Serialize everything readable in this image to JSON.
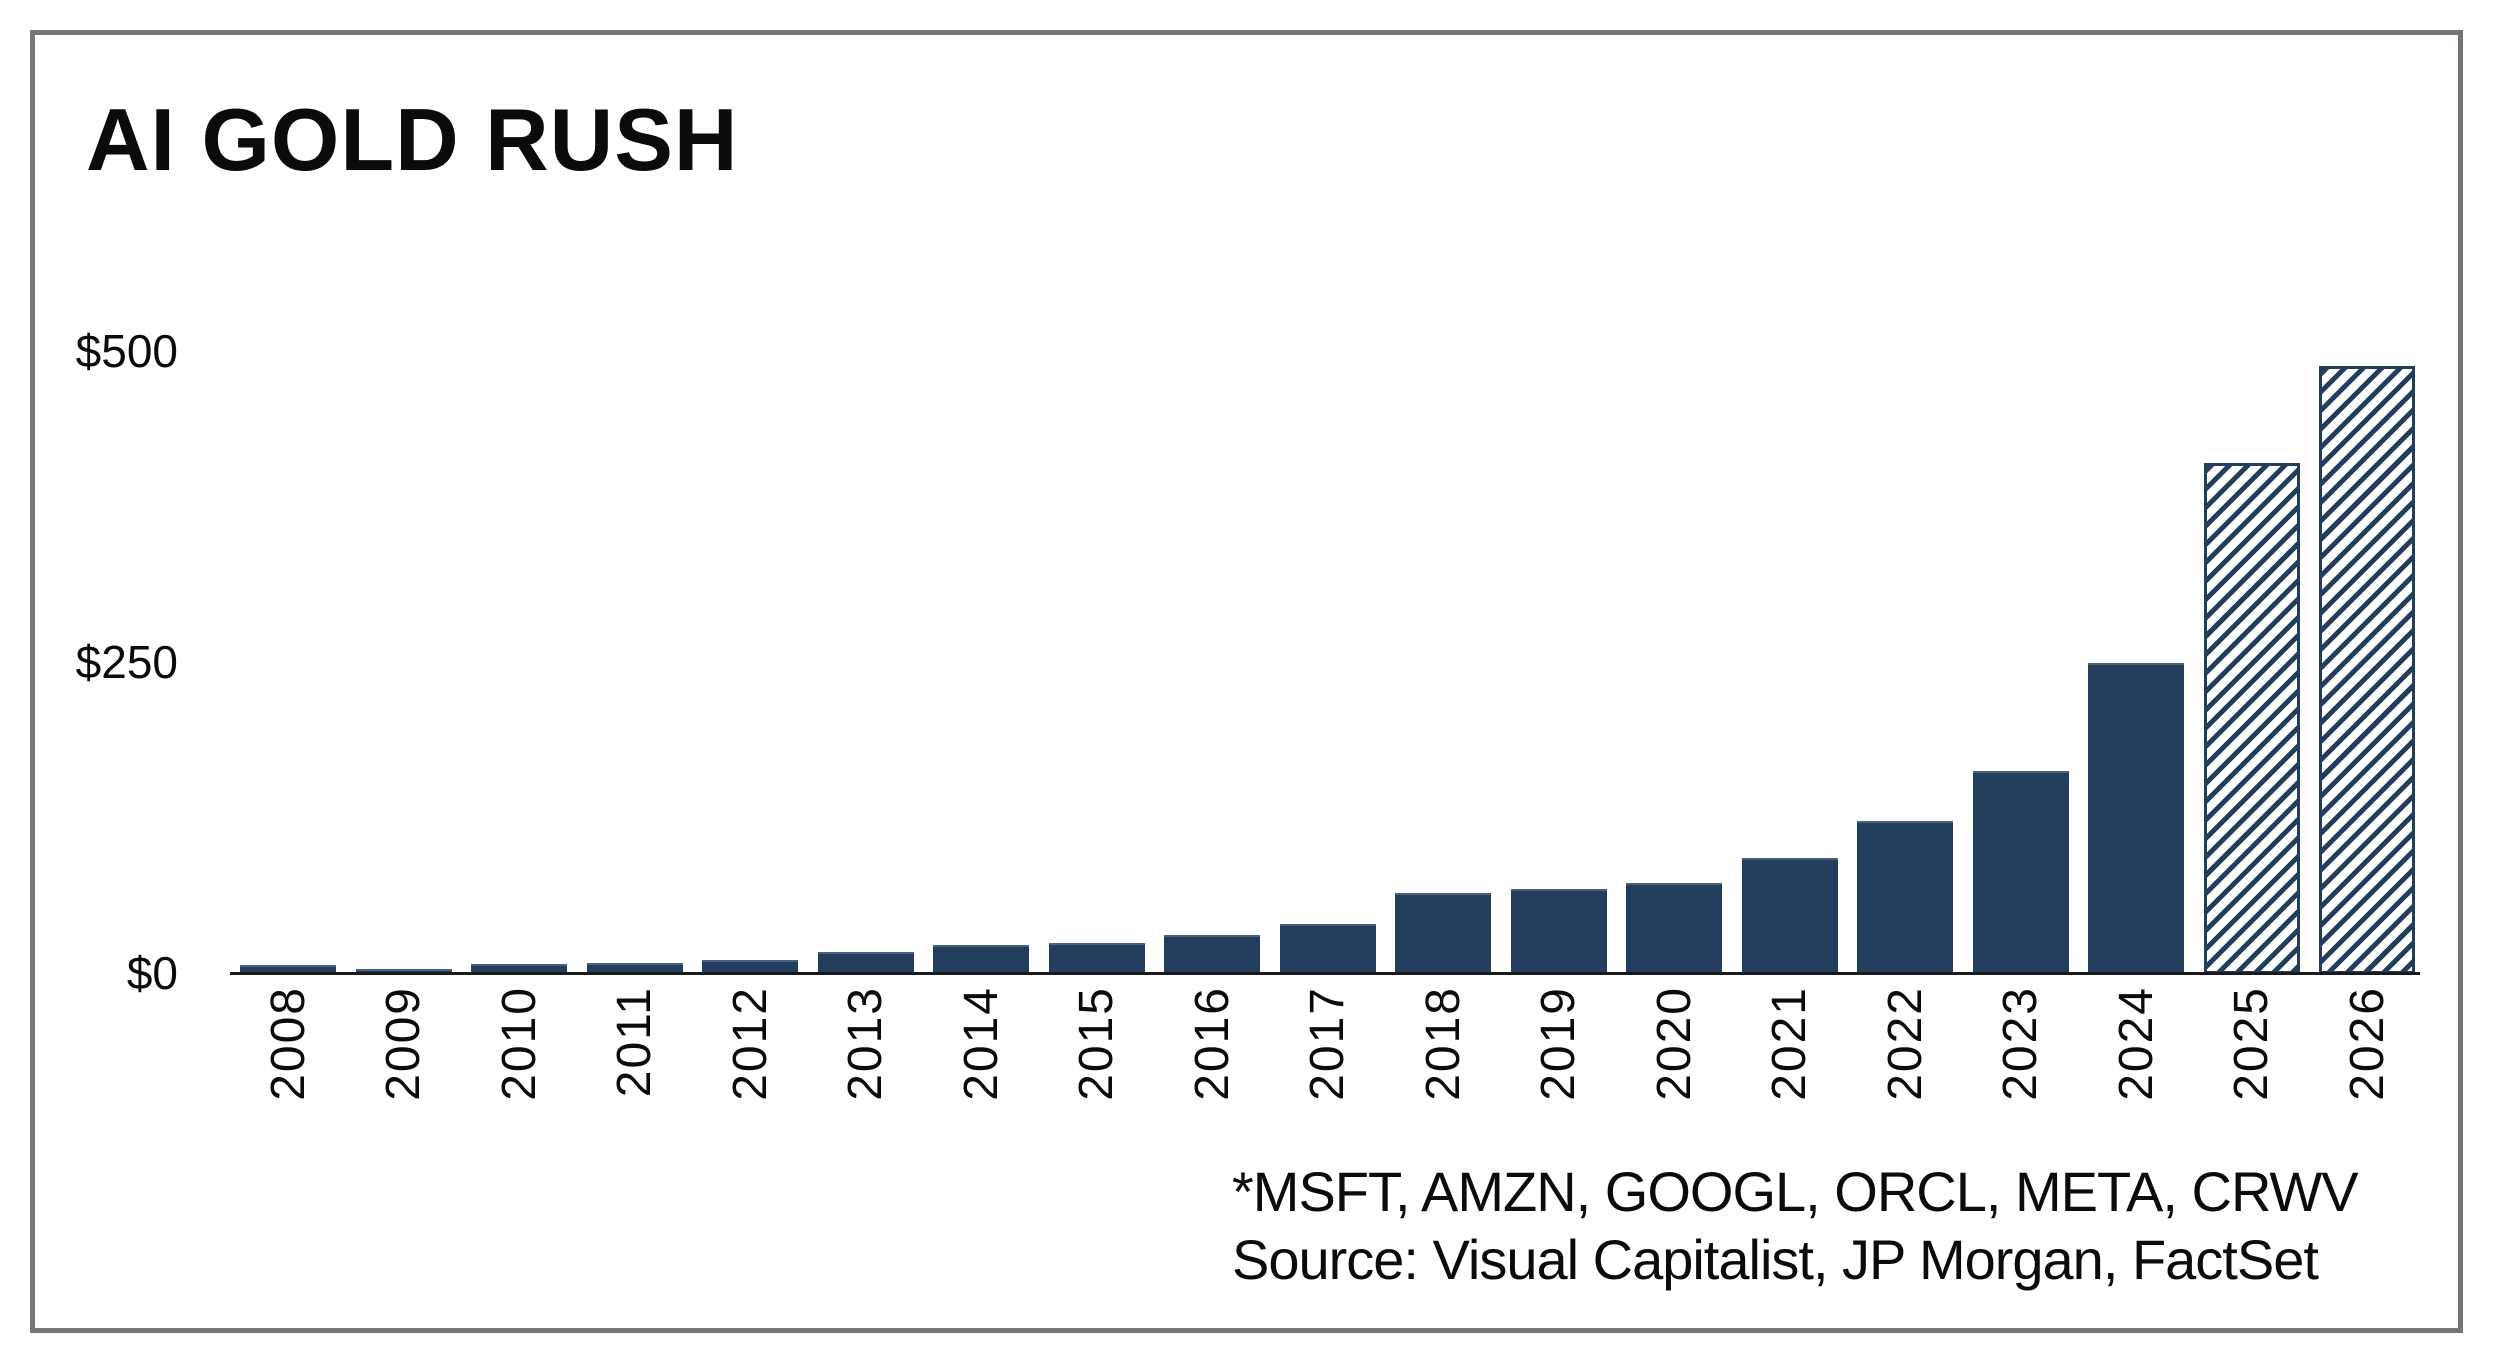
{
  "title": "AI GOLD RUSH",
  "footnote": "*MSFT, AMZN, GOOGL, ORCL, META, CRWV",
  "source_line": "Source: Visual Capitalist, JP Morgan, FactSet",
  "colors": {
    "bar_navy": "#233e5c",
    "bar_top_edge": "#47617f",
    "hatch_background": "#ffffff",
    "axis_black": "#1a1a1a",
    "frame_border_gray": "#72767b",
    "text_black": "#0b0b0b"
  },
  "chart_data": {
    "type": "bar",
    "title": "AI GOLD RUSH",
    "categories": [
      "2008",
      "2009",
      "2010",
      "2011",
      "2012",
      "2013",
      "2014",
      "2015",
      "2016",
      "2017",
      "2018",
      "2019",
      "2020",
      "2021",
      "2022",
      "2023",
      "2024",
      "2025",
      "2026"
    ],
    "values": [
      7,
      4,
      8,
      9,
      11,
      18,
      23,
      25,
      31,
      40,
      65,
      68,
      73,
      93,
      123,
      163,
      250,
      411,
      489
    ],
    "hatched_categories": [
      "2025",
      "2026"
    ],
    "xlabel": "",
    "ylabel": "",
    "y_tick_labels": [
      "$0",
      "$250",
      "$500"
    ],
    "y_tick_values": [
      0,
      250,
      500
    ],
    "ylim": [
      0,
      500
    ],
    "grid": false,
    "legend_position": "none",
    "x_tick_rotation_degrees": 90
  }
}
